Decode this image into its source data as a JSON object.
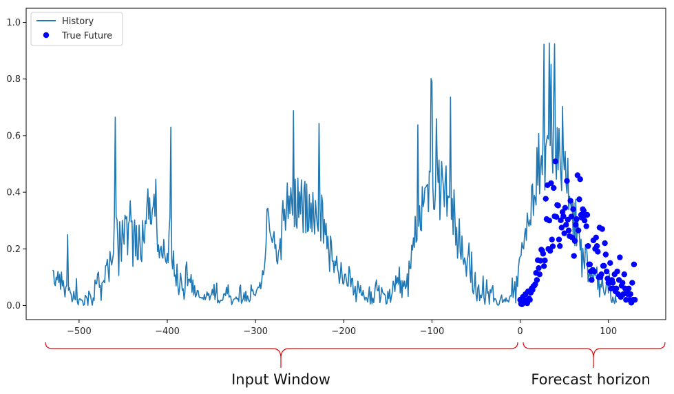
{
  "chart_data": {
    "type": "line",
    "title": "",
    "xlabel": "",
    "ylabel": "",
    "xlim": [
      -560,
      165
    ],
    "ylim": [
      -0.05,
      1.05
    ],
    "x_ticks": [
      -500,
      -400,
      -300,
      -200,
      -100,
      0,
      100
    ],
    "x_tick_labels": [
      "−500",
      "−400",
      "−300",
      "−200",
      "−100",
      "0",
      "100"
    ],
    "y_ticks": [
      0.0,
      0.2,
      0.4,
      0.6,
      0.8,
      1.0
    ],
    "y_tick_labels": [
      "0.0",
      "0.2",
      "0.4",
      "0.6",
      "0.8",
      "1.0"
    ],
    "grid": false,
    "legend": {
      "position": "top-left",
      "entries": [
        "History",
        "True Future"
      ]
    },
    "series": [
      {
        "name": "History",
        "kind": "line",
        "color": "#1f77b4",
        "x_start": -530,
        "x_step": 1,
        "values": [
          0.125,
          0.122,
          0.078,
          0.07,
          0.1,
          0.09,
          0.12,
          0.081,
          0.11,
          0.057,
          0.118,
          0.069,
          0.088,
          0.059,
          0.03,
          0.065,
          0.07,
          0.25,
          0.054,
          0.063,
          0.047,
          0.04,
          0.013,
          0.021,
          0.05,
          0.024,
          0.02,
          0.095,
          0.013,
          0.002,
          0.021,
          0.024,
          0.019,
          0.02,
          0.015,
          0.001,
          0.003,
          0.036,
          0.031,
          0.025,
          0.001,
          0.051,
          0.042,
          0.035,
          0.016,
          0.001,
          0.027,
          0.018,
          0.09,
          0.077,
          0.077,
          0.111,
          0.118,
          0.064,
          0.07,
          0.018,
          0.08,
          0.082,
          0.088,
          0.08,
          0.14,
          0.142,
          0.163,
          0.125,
          0.084,
          0.191,
          0.161,
          0.143,
          0.163,
          0.185,
          0.313,
          0.665,
          0.314,
          0.303,
          0.22,
          0.106,
          0.296,
          0.231,
          0.156,
          0.301,
          0.25,
          0.216,
          0.319,
          0.306,
          0.314,
          0.179,
          0.288,
          0.3,
          0.37,
          0.296,
          0.299,
          0.138,
          0.265,
          0.302,
          0.175,
          0.282,
          0.162,
          0.163,
          0.284,
          0.224,
          0.165,
          0.155,
          0.3,
          0.232,
          0.22,
          0.299,
          0.29,
          0.362,
          0.412,
          0.305,
          0.381,
          0.289,
          0.287,
          0.337,
          0.35,
          0.393,
          0.315,
          0.446,
          0.28,
          0.19,
          0.214,
          0.168,
          0.198,
          0.209,
          0.174,
          0.167,
          0.233,
          0.183,
          0.158,
          0.149,
          0.184,
          0.151,
          0.263,
          0.313,
          0.63,
          0.163,
          0.129,
          0.193,
          0.103,
          0.108,
          0.069,
          0.146,
          0.07,
          0.038,
          0.065,
          0.114,
          0.088,
          0.054,
          0.059,
          0.022,
          0.049,
          0.137,
          0.154,
          0.07,
          0.092,
          0.093,
          0.081,
          0.109,
          0.047,
          0.09,
          0.037,
          0.07,
          0.03,
          0.038,
          0.053,
          0.052,
          0.031,
          0.027,
          0.029,
          0.026,
          0.028,
          0.021,
          0.039,
          0.02,
          0.031,
          0.048,
          0.035,
          0.043,
          0.019,
          0.033,
          0.039,
          0.057,
          0.036,
          0.075,
          0.021,
          0.041,
          0.079,
          0.009,
          0.018,
          0.009,
          0.016,
          0.019,
          0.017,
          0.021,
          0.041,
          0.041,
          0.035,
          0.064,
          0.041,
          0.073,
          0.029,
          0.034,
          0.03,
          0.003,
          0.012,
          0.02,
          0.023,
          0.024,
          0.03,
          0.023,
          0.024,
          0.014,
          0.063,
          0.072,
          0.008,
          0.015,
          0.023,
          0.045,
          0.016,
          0.05,
          0.015,
          0.034,
          0.021,
          0.013,
          0.02,
          0.073,
          0.051,
          0.055,
          0.039,
          0.037,
          0.035,
          0.052,
          0.059,
          0.065,
          0.063,
          0.082,
          0.059,
          0.085,
          0.123,
          0.109,
          0.132,
          0.169,
          0.222,
          0.34,
          0.343,
          0.314,
          0.266,
          0.249,
          0.237,
          0.222,
          0.241,
          0.261,
          0.201,
          0.215,
          0.157,
          0.147,
          0.188,
          0.201,
          0.236,
          0.162,
          0.319,
          0.371,
          0.3,
          0.34,
          0.266,
          0.335,
          0.433,
          0.307,
          0.387,
          0.324,
          0.416,
          0.366,
          0.319,
          0.688,
          0.278,
          0.446,
          0.286,
          0.273,
          0.45,
          0.311,
          0.401,
          0.323,
          0.444,
          0.353,
          0.258,
          0.413,
          0.438,
          0.257,
          0.429,
          0.261,
          0.266,
          0.392,
          0.273,
          0.362,
          0.26,
          0.399,
          0.308,
          0.252,
          0.371,
          0.323,
          0.284,
          0.262,
          0.643,
          0.366,
          0.228,
          0.39,
          0.362,
          0.22,
          0.304,
          0.25,
          0.29,
          0.2,
          0.245,
          0.19,
          0.12,
          0.245,
          0.223,
          0.156,
          0.157,
          0.116,
          0.157,
          0.141,
          0.174,
          0.13,
          0.115,
          0.078,
          0.104,
          0.152,
          0.111,
          0.077,
          0.076,
          0.11,
          0.111,
          0.09,
          0.069,
          0.068,
          0.138,
          0.12,
          0.066,
          0.095,
          0.096,
          0.037,
          0.049,
          0.068,
          0.013,
          0.044,
          0.086,
          0.063,
          0.045,
          0.07,
          0.037,
          0.035,
          0.053,
          0.032,
          0.019,
          0.029,
          0.027,
          0.012,
          0.033,
          0.066,
          0.005,
          0.048,
          0.006,
          0.026,
          0.01,
          0.042,
          0.074,
          0.09,
          0.054,
          0.052,
          0.071,
          0.01,
          0.028,
          0.063,
          0.048,
          0.041,
          0.041,
          0.036,
          0.005,
          0.008,
          0.05,
          0.024,
          0.057,
          0.011,
          0.029,
          0.046,
          0.086,
          0.073,
          0.049,
          0.105,
          0.076,
          0.099,
          0.075,
          0.136,
          0.044,
          0.088,
          0.028,
          0.087,
          0.067,
          0.086,
          0.059,
          0.069,
          0.112,
          0.032,
          0.157,
          0.131,
          0.131,
          0.213,
          0.196,
          0.239,
          0.205,
          0.315,
          0.223,
          0.23,
          0.638,
          0.28,
          0.352,
          0.268,
          0.264,
          0.42,
          0.349,
          0.366,
          0.415,
          0.417,
          0.424,
          0.428,
          0.331,
          0.475,
          0.472,
          0.802,
          0.79,
          0.418,
          0.34,
          0.339,
          0.406,
          0.66,
          0.502,
          0.434,
          0.514,
          0.303,
          0.397,
          0.508,
          0.455,
          0.419,
          0.349,
          0.441,
          0.493,
          0.315,
          0.388,
          0.381,
          0.384,
          0.736,
          0.304,
          0.378,
          0.251,
          0.409,
          0.316,
          0.213,
          0.276,
          0.167,
          0.219,
          0.306,
          0.188,
          0.163,
          0.246,
          0.17,
          0.145,
          0.168,
          0.152,
          0.103,
          0.157,
          0.179,
          0.221,
          0.122,
          0.081,
          0.189,
          0.053,
          0.041,
          0.066,
          0.117,
          0.038,
          0.016,
          0.063,
          0.073,
          0.017,
          0.037,
          0.027,
          0.042,
          0.104,
          0.026,
          0.004,
          0.036,
          0.091,
          0.043,
          0.048,
          0.004,
          0.056,
          0.045,
          0.061,
          0.07,
          0.013,
          0.024,
          0.023,
          0.016,
          0.003,
          0.001,
          0.003,
          0.017,
          0.028,
          0.037,
          0.01,
          0.015,
          0.022,
          0.013,
          0.027,
          0.015,
          0.018,
          0.012,
          0.029,
          0.035,
          0.033,
          0.097,
          0.028,
          0.054,
          0.084,
          0.009,
          0.103,
          0.067,
          0.132,
          0.163,
          0.173,
          0.176,
          0.222,
          0.205,
          0.2,
          0.25,
          0.272,
          0.23,
          0.327,
          0.294,
          0.28,
          0.302,
          0.284,
          0.421,
          0.429,
          0.318,
          0.389,
          0.38,
          0.355,
          0.558,
          0.425,
          0.608,
          0.394,
          0.49,
          0.529,
          0.462,
          0.602,
          0.923,
          0.408,
          0.561,
          0.583,
          0.6,
          0.588,
          0.927,
          0.565,
          0.852,
          0.547,
          0.468,
          0.74,
          0.924,
          0.525,
          0.446,
          0.629,
          0.479,
          0.625,
          0.534,
          0.465,
          0.406,
          0.703,
          0.535,
          0.479,
          0.545,
          0.43,
          0.397,
          0.52,
          0.338,
          0.386,
          0.362,
          0.343,
          0.368,
          0.245,
          0.364,
          0.211,
          0.375,
          0.211,
          0.311,
          0.265,
          0.253,
          0.196,
          0.234,
          0.101,
          0.202,
          0.159,
          0.13,
          0.215,
          0.216,
          0.173,
          0.084,
          0.109,
          0.109,
          0.094,
          0.135,
          0.087,
          0.086,
          0.133,
          0.105,
          0.119,
          0.136,
          0.057,
          0.106,
          0.03,
          0.075,
          0.065,
          0.103,
          0.064,
          0.045,
          0.037,
          0.054,
          0.088,
          0.094,
          0.044,
          0.113,
          0.068,
          0.019,
          0.01,
          0.03,
          0.015,
          0.007,
          0.032,
          0.01
        ]
      },
      {
        "name": "True Future",
        "kind": "scatter",
        "color": "#0000ff",
        "points": [
          [
            0,
            0.02
          ],
          [
            1,
            0.006
          ],
          [
            2,
            0.004
          ],
          [
            3,
            0.03
          ],
          [
            4,
            0.015
          ],
          [
            5,
            0.01
          ],
          [
            6,
            0.04
          ],
          [
            7,
            0.019
          ],
          [
            8,
            0.008
          ],
          [
            9,
            0.05
          ],
          [
            10,
            0.025
          ],
          [
            11,
            0.02
          ],
          [
            12,
            0.045
          ],
          [
            13,
            0.06
          ],
          [
            14,
            0.055
          ],
          [
            15,
            0.068
          ],
          [
            16,
            0.07
          ],
          [
            17,
            0.075
          ],
          [
            18,
            0.115
          ],
          [
            19,
            0.09
          ],
          [
            20,
            0.16
          ],
          [
            21,
            0.132
          ],
          [
            22,
            0.11
          ],
          [
            23,
            0.158
          ],
          [
            24,
            0.197
          ],
          [
            25,
            0.193
          ],
          [
            26,
            0.183
          ],
          [
            27,
            0.139
          ],
          [
            28,
            0.159
          ],
          [
            29,
            0.377
          ],
          [
            30,
            0.305
          ],
          [
            31,
            0.425
          ],
          [
            32,
            0.2
          ],
          [
            33,
            0.3
          ],
          [
            34,
            0.193
          ],
          [
            35,
            0.432
          ],
          [
            36,
            0.233
          ],
          [
            37,
            0.209
          ],
          [
            38,
            0.415
          ],
          [
            39,
            0.315
          ],
          [
            40,
            0.509
          ],
          [
            41,
            0.313
          ],
          [
            42,
            0.355
          ],
          [
            43,
            0.353
          ],
          [
            44,
            0.233
          ],
          [
            45,
            0.21
          ],
          [
            46,
            0.301
          ],
          [
            47,
            0.275
          ],
          [
            48,
            0.33
          ],
          [
            49,
            0.315
          ],
          [
            50,
            0.255
          ],
          [
            51,
            0.345
          ],
          [
            52,
            0.285
          ],
          [
            53,
            0.44
          ],
          [
            54,
            0.303
          ],
          [
            55,
            0.265
          ],
          [
            56,
            0.245
          ],
          [
            57,
            0.37
          ],
          [
            58,
            0.314
          ],
          [
            59,
            0.24
          ],
          [
            60,
            0.34
          ],
          [
            61,
            0.175
          ],
          [
            62,
            0.228
          ],
          [
            63,
            0.285
          ],
          [
            64,
            0.305
          ],
          [
            65,
            0.46
          ],
          [
            66,
            0.265
          ],
          [
            67,
            0.375
          ],
          [
            68,
            0.446
          ],
          [
            69,
            0.32
          ],
          [
            70,
            0.31
          ],
          [
            71,
            0.34
          ],
          [
            72,
            0.335
          ],
          [
            73,
            0.3
          ],
          [
            74,
            0.32
          ],
          [
            75,
            0.28
          ],
          [
            76,
            0.32
          ],
          [
            77,
            0.21
          ],
          [
            78,
            0.145
          ],
          [
            79,
            0.145
          ],
          [
            80,
            0.12
          ],
          [
            81,
            0.09
          ],
          [
            82,
            0.125
          ],
          [
            83,
            0.23
          ],
          [
            84,
            0.12
          ],
          [
            85,
            0.2
          ],
          [
            86,
            0.24
          ],
          [
            87,
            0.21
          ],
          [
            88,
            0.19
          ],
          [
            89,
            0.1
          ],
          [
            90,
            0.275
          ],
          [
            91,
            0.1
          ],
          [
            92,
            0.11
          ],
          [
            93,
            0.27
          ],
          [
            94,
            0.14
          ],
          [
            95,
            0.14
          ],
          [
            96,
            0.22
          ],
          [
            97,
            0.18
          ],
          [
            98,
            0.12
          ],
          [
            99,
            0.095
          ],
          [
            100,
            0.08
          ],
          [
            101,
            0.08
          ],
          [
            102,
            0.15
          ],
          [
            103,
            0.06
          ],
          [
            104,
            0.09
          ],
          [
            105,
            0.08
          ],
          [
            106,
            0.06
          ],
          [
            107,
            0.11
          ],
          [
            108,
            0.05
          ],
          [
            109,
            0.06
          ],
          [
            110,
            0.12
          ],
          [
            111,
            0.04
          ],
          [
            112,
            0.09
          ],
          [
            113,
            0.17
          ],
          [
            114,
            0.03
          ],
          [
            115,
            0.07
          ],
          [
            116,
            0.08
          ],
          [
            117,
            0.04
          ],
          [
            118,
            0.11
          ],
          [
            119,
            0.06
          ],
          [
            120,
            0.02
          ],
          [
            121,
            0.05
          ],
          [
            122,
            0.04
          ],
          [
            123,
            0.06
          ],
          [
            124,
            0.02
          ],
          [
            125,
            0.04
          ],
          [
            126,
            0.01
          ],
          [
            127,
            0.08
          ],
          [
            128,
            0.02
          ],
          [
            129,
            0.145
          ],
          [
            130,
            0.02
          ]
        ]
      }
    ],
    "annotations": [
      {
        "text": "Input Window",
        "color": "#e60000",
        "x_range": [
          -560,
          -2
        ]
      },
      {
        "text": "Forecast horizon",
        "color": "#e60000",
        "x_range": [
          2,
          165
        ]
      }
    ]
  }
}
